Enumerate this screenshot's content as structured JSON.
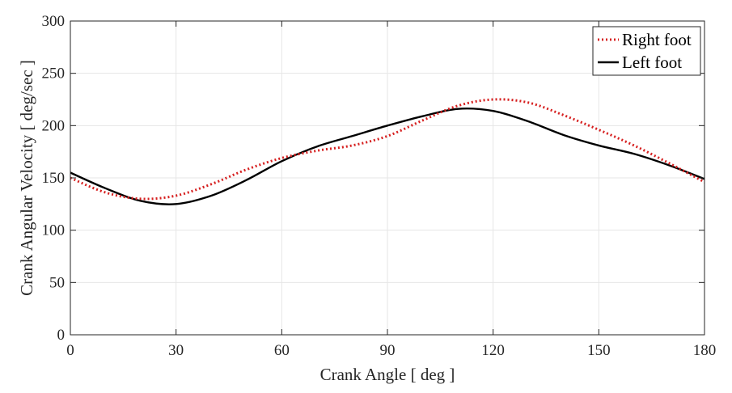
{
  "chart_data": {
    "type": "line",
    "title": "",
    "xlabel": "Crank Angle [ deg ]",
    "ylabel": "Crank Angular Velocity [ deg/sec ]",
    "xlim": [
      0,
      180
    ],
    "ylim": [
      0,
      300
    ],
    "xticks": [
      "0",
      "30",
      "60",
      "90",
      "120",
      "150",
      "180"
    ],
    "yticks": [
      "0",
      "50",
      "100",
      "150",
      "200",
      "250",
      "300"
    ],
    "grid": true,
    "legend_position": "top-right",
    "series": [
      {
        "name": "Right foot",
        "style": "dotted",
        "color": "#d62020",
        "x": [
          0,
          10,
          20,
          30,
          40,
          50,
          60,
          70,
          80,
          90,
          100,
          110,
          120,
          130,
          140,
          150,
          160,
          170,
          180
        ],
        "y": [
          150,
          136,
          130,
          133,
          144,
          158,
          169,
          176,
          181,
          190,
          205,
          219,
          225,
          222,
          210,
          196,
          181,
          164,
          146
        ]
      },
      {
        "name": "Left foot",
        "style": "solid",
        "color": "#000000",
        "x": [
          0,
          10,
          20,
          30,
          40,
          50,
          60,
          70,
          80,
          90,
          100,
          110,
          120,
          130,
          140,
          150,
          160,
          170,
          180
        ],
        "y": [
          155,
          140,
          128,
          125,
          133,
          148,
          166,
          180,
          190,
          200,
          209,
          216,
          214,
          204,
          191,
          181,
          173,
          162,
          149
        ]
      }
    ]
  }
}
